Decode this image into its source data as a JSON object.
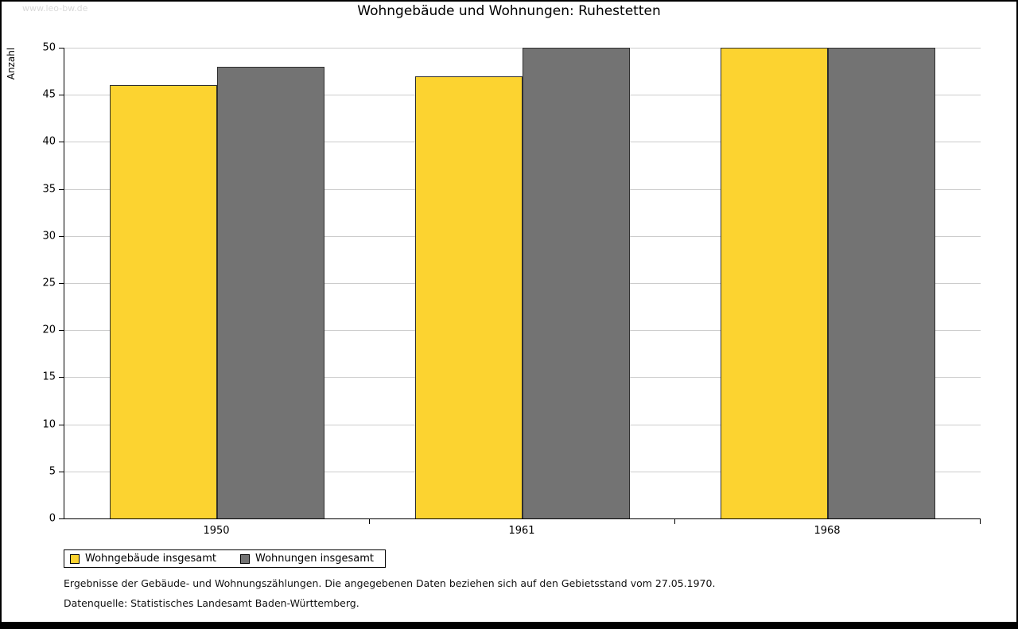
{
  "watermark": "www.leo-bw.de",
  "title": "Wohngebäude und Wohnungen: Ruhestetten",
  "chart_data": {
    "type": "bar",
    "title": "Wohngebäude und Wohnungen: Ruhestetten",
    "categories": [
      "1950",
      "1961",
      "1968"
    ],
    "series": [
      {
        "name": "Wohngebäude insgesamt",
        "color": "#FCD330",
        "values": [
          46,
          47,
          50
        ]
      },
      {
        "name": "Wohnungen insgesamt",
        "color": "#737373",
        "values": [
          48,
          50,
          50
        ]
      }
    ],
    "xlabel": "",
    "ylabel": "Anzahl",
    "ylim": [
      0,
      50
    ],
    "ytick_step": 5,
    "grid": true,
    "legend_position": "bottom-left",
    "bar_border_color": "#2e2e2e"
  },
  "footnotes": {
    "line1": "Ergebnisse der Gebäude- und Wohnungszählungen. Die angegebenen Daten beziehen sich auf den Gebietsstand vom 27.05.1970.",
    "line2": "Datenquelle: Statistisches Landesamt Baden-Württemberg."
  }
}
